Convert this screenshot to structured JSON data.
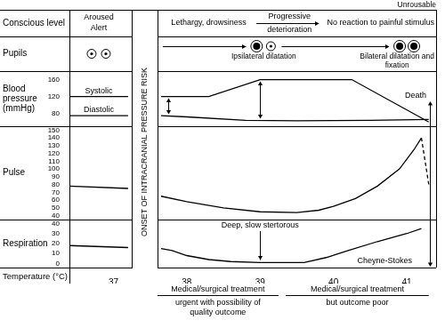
{
  "chart_data": {
    "type": "line",
    "color": "#000000",
    "grid": false,
    "xlim": [
      36.4,
      41.4
    ],
    "xticks": [
      37,
      38,
      39,
      40,
      41
    ],
    "x_label": "Temperature (°C)",
    "conscious_level": {
      "label": "Conscious level",
      "header": "Unrousable",
      "stages": [
        {
          "x": 36.8,
          "text": [
            "Aroused",
            "Alert"
          ]
        },
        {
          "x": 38.3,
          "text": [
            "Lethargy, drowsiness"
          ]
        },
        {
          "x": 39.4,
          "text": [
            "Progressive",
            "deterioration"
          ],
          "range": [
            38.95,
            39.8
          ]
        },
        {
          "x": 40.9,
          "text": [
            "No reaction to painful stimulus"
          ]
        }
      ]
    },
    "onset": {
      "label": "ONSET OF INTRACRANIAL PRESSURE RISK",
      "range": [
        37.25,
        37.6
      ]
    },
    "pupils": {
      "label": "Pupils",
      "stages": [
        {
          "x": 36.8,
          "marker": [
            "small",
            "small"
          ]
        },
        {
          "x": 39.05,
          "marker": [
            "large",
            "small"
          ],
          "text": "Ipsilateral dilatation"
        },
        {
          "x": 41.0,
          "marker": [
            "large",
            "large"
          ],
          "text": "Bilateral dilatation and fixation"
        }
      ]
    },
    "panels": [
      {
        "label": "Blood pressure (mmHg)",
        "ylim": [
          50,
          180
        ],
        "yticks": [
          80,
          120,
          160
        ],
        "series": [
          {
            "name": "Systolic",
            "x": [
              36.4,
              37.2,
              37.42,
              37.65,
              38.3,
              39.0,
              40.25,
              41.3
            ],
            "values": [
              120,
              120,
              null,
              120,
              120,
              160,
              160,
              60
            ]
          },
          {
            "name": "Diastolic",
            "x": [
              36.4,
              37.2,
              37.42,
              37.65,
              38.0,
              38.8,
              39.5,
              40.5,
              41.3
            ],
            "values": [
              75,
              75,
              null,
              75,
              72,
              64,
              63,
              64,
              66
            ]
          }
        ]
      },
      {
        "label": "Pulse",
        "ylim": [
          35,
          155
        ],
        "yticks": [
          40,
          50,
          60,
          70,
          80,
          90,
          100,
          110,
          120,
          130,
          140,
          150
        ],
        "series": [
          {
            "x": [
              36.4,
              37.2,
              37.42,
              37.65,
              38.0,
              38.5,
              39.0,
              39.5,
              39.8,
              40.0,
              40.3,
              40.6,
              40.9,
              41.1,
              41.2
            ],
            "values": [
              78,
              75,
              null,
              65,
              58,
              50,
              45,
              44,
              47,
              52,
              62,
              78,
              100,
              125,
              140
            ]
          },
          {
            "x": [
              41.2,
              41.3
            ],
            "values": [
              140,
              80
            ],
            "line_style": "dashed"
          }
        ]
      },
      {
        "label": "Respiration",
        "ylim": [
          -4,
          44
        ],
        "yticks": [
          0,
          10,
          20,
          30,
          40
        ],
        "series": [
          {
            "x": [
              36.4,
              37.2,
              37.42,
              37.65,
              37.8,
              38.0,
              38.3,
              38.6,
              39.0,
              39.6,
              39.9,
              40.2,
              40.6,
              41.0,
              41.2
            ],
            "values": [
              18,
              16,
              null,
              15,
              13,
              8,
              4,
              2,
              1,
              1,
              6,
              13,
              22,
              30,
              35
            ]
          }
        ],
        "annotations": [
          {
            "text": "Deep, slow stertorous",
            "x": 39.0
          },
          {
            "text": "Cheyne-Stokes",
            "x": 40.7
          }
        ]
      }
    ],
    "death_label": "Death",
    "treatment": [
      {
        "text": [
          "Medical/surgical treatment",
          "urgent with possibility of",
          "quality outcome"
        ],
        "range": [
          37.6,
          39.25
        ]
      },
      {
        "text": [
          "Medical/surgical treatment",
          "but outcome poor"
        ],
        "range": [
          39.35,
          41.3
        ]
      }
    ]
  }
}
